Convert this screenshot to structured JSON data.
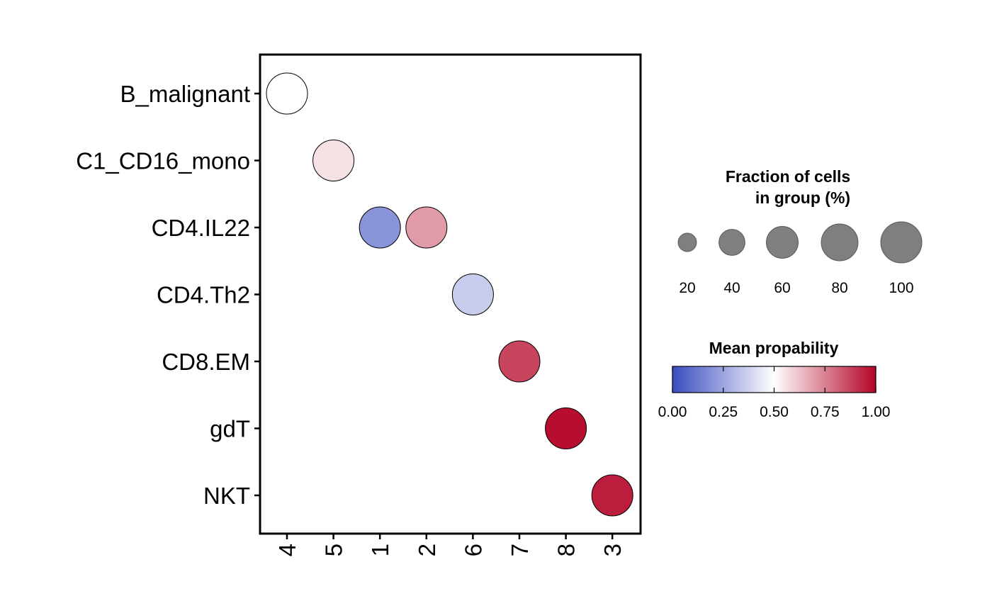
{
  "chart_data": {
    "type": "scatter",
    "subtype": "dot plot",
    "x_categories": [
      "4",
      "5",
      "1",
      "2",
      "6",
      "7",
      "8",
      "3"
    ],
    "y_categories": [
      "B_malignant",
      "C1_CD16_mono",
      "CD4.IL22",
      "CD4.Th2",
      "CD8.EM",
      "gdT",
      "NKT"
    ],
    "points": [
      {
        "x": "4",
        "y": "B_malignant",
        "fraction": 100,
        "mean_prob": 0.5
      },
      {
        "x": "5",
        "y": "C1_CD16_mono",
        "fraction": 100,
        "mean_prob": 0.56
      },
      {
        "x": "1",
        "y": "CD4.IL22",
        "fraction": 100,
        "mean_prob": 0.2
      },
      {
        "x": "2",
        "y": "CD4.IL22",
        "fraction": 100,
        "mean_prob": 0.7
      },
      {
        "x": "6",
        "y": "CD4.Th2",
        "fraction": 100,
        "mean_prob": 0.36
      },
      {
        "x": "7",
        "y": "CD8.EM",
        "fraction": 100,
        "mean_prob": 0.87
      },
      {
        "x": "8",
        "y": "gdT",
        "fraction": 100,
        "mean_prob": 0.98
      },
      {
        "x": "3",
        "y": "NKT",
        "fraction": 100,
        "mean_prob": 0.95
      }
    ],
    "legend_size": {
      "title_line1": "Fraction of cells",
      "title_line2": "in group (%)",
      "values": [
        20,
        40,
        60,
        80,
        100
      ],
      "labels": [
        "20",
        "40",
        "60",
        "80",
        "100"
      ],
      "color": "#7f7f7f"
    },
    "legend_color": {
      "title": "Mean propability",
      "range": [
        0,
        1
      ],
      "tick_values": [
        0,
        0.25,
        0.5,
        0.75,
        1
      ],
      "tick_labels": [
        "0.00",
        "0.25",
        "0.50",
        "0.75",
        "1.00"
      ],
      "low_color": "#3b4cc0",
      "mid_color": "#ffffff",
      "high_color": "#b40426"
    },
    "legend_placement": "right",
    "grid": false
  }
}
